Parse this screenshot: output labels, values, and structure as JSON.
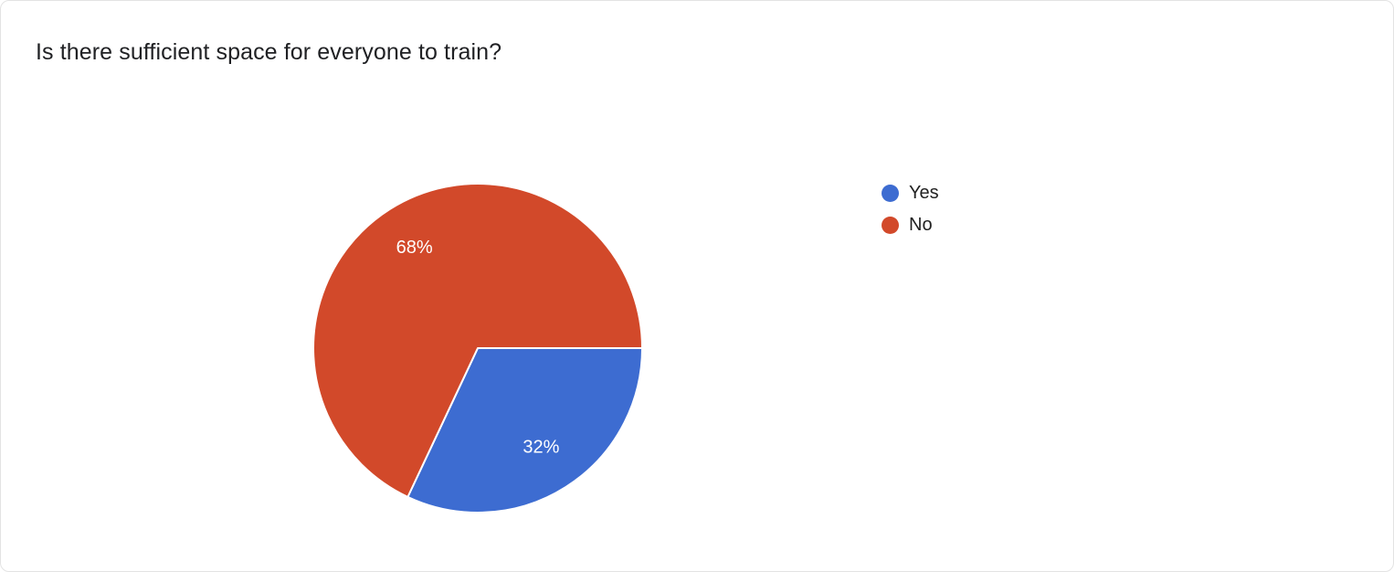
{
  "title": "Is there sufficient space for everyone to train?",
  "colors": {
    "yes": "#3d6cd1",
    "no": "#d2492a",
    "title_text": "#202124",
    "slice_label_text": "#ffffff",
    "slice_border": "#ffffff"
  },
  "chart_data": {
    "type": "pie",
    "title": "Is there sufficient space for everyone to train?",
    "categories": [
      "Yes",
      "No"
    ],
    "values": [
      32,
      68
    ],
    "unit": "%",
    "slice_labels": [
      "32%",
      "68%"
    ],
    "slice_colors": [
      "#3d6cd1",
      "#d2492a"
    ],
    "start_angle_deg_from_east": 0,
    "direction": "clockwise",
    "legend_position": "right",
    "label_radius_ratio": 0.72
  },
  "legend": {
    "items": [
      {
        "label": "Yes",
        "color": "#3d6cd1"
      },
      {
        "label": "No",
        "color": "#d2492a"
      }
    ]
  }
}
